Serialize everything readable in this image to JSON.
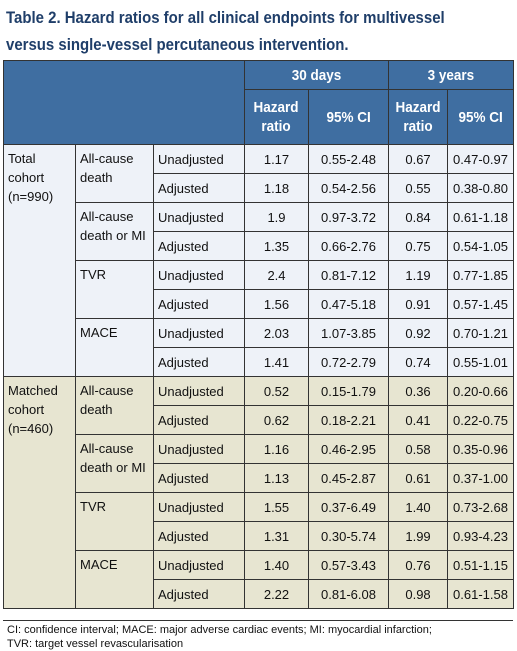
{
  "title_line1": "Table 2. Hazard ratios for all clinical endpoints for multivessel",
  "title_line2": "versus single-vessel percutaneous intervention.",
  "header": {
    "period_30": "30 days",
    "period_3y": "3 years",
    "hazard_line1": "Hazard",
    "hazard_line2": "ratio",
    "ci": "95% CI"
  },
  "groups": [
    {
      "label_lines": [
        "Total",
        "cohort",
        "(n=990)"
      ],
      "endpoints": [
        {
          "label_lines": [
            "All-cause",
            "death"
          ],
          "rows": [
            {
              "adj": "Unadjusted",
              "hr30": "1.17",
              "ci30": "0.55-2.48",
              "hr3": "0.67",
              "ci3": "0.47-0.97"
            },
            {
              "adj": "Adjusted",
              "hr30": "1.18",
              "ci30": "0.54-2.56",
              "hr3": "0.55",
              "ci3": "0.38-0.80"
            }
          ]
        },
        {
          "label_lines": [
            "All-cause",
            "death or MI"
          ],
          "rows": [
            {
              "adj": "Unadjusted",
              "hr30": "1.9",
              "ci30": "0.97-3.72",
              "hr3": "0.84",
              "ci3": "0.61-1.18"
            },
            {
              "adj": "Adjusted",
              "hr30": "1.35",
              "ci30": "0.66-2.76",
              "hr3": "0.75",
              "ci3": "0.54-1.05"
            }
          ]
        },
        {
          "label_lines": [
            "TVR"
          ],
          "rows": [
            {
              "adj": "Unadjusted",
              "hr30": "2.4",
              "ci30": "0.81-7.12",
              "hr3": "1.19",
              "ci3": "0.77-1.85"
            },
            {
              "adj": "Adjusted",
              "hr30": "1.56",
              "ci30": "0.47-5.18",
              "hr3": "0.91",
              "ci3": "0.57-1.45"
            }
          ]
        },
        {
          "label_lines": [
            "MACE"
          ],
          "rows": [
            {
              "adj": "Unadjusted",
              "hr30": "2.03",
              "ci30": "1.07-3.85",
              "hr3": "0.92",
              "ci3": "0.70-1.21"
            },
            {
              "adj": "Adjusted",
              "hr30": "1.41",
              "ci30": "0.72-2.79",
              "hr3": "0.74",
              "ci3": "0.55-1.01"
            }
          ]
        }
      ]
    },
    {
      "label_lines": [
        "Matched",
        "cohort",
        "(n=460)"
      ],
      "endpoints": [
        {
          "label_lines": [
            "All-cause",
            "death"
          ],
          "rows": [
            {
              "adj": "Unadjusted",
              "hr30": "0.52",
              "ci30": "0.15-1.79",
              "hr3": "0.36",
              "ci3": "0.20-0.66"
            },
            {
              "adj": "Adjusted",
              "hr30": "0.62",
              "ci30": "0.18-2.21",
              "hr3": "0.41",
              "ci3": "0.22-0.75"
            }
          ]
        },
        {
          "label_lines": [
            "All-cause",
            "death or MI"
          ],
          "rows": [
            {
              "adj": "Unadjusted",
              "hr30": "1.16",
              "ci30": "0.46-2.95",
              "hr3": "0.58",
              "ci3": "0.35-0.96"
            },
            {
              "adj": "Adjusted",
              "hr30": "1.13",
              "ci30": "0.45-2.87",
              "hr3": "0.61",
              "ci3": "0.37-1.00"
            }
          ]
        },
        {
          "label_lines": [
            "TVR"
          ],
          "rows": [
            {
              "adj": "Unadjusted",
              "hr30": "1.55",
              "ci30": "0.37-6.49",
              "hr3": "1.40",
              "ci3": "0.73-2.68"
            },
            {
              "adj": "Adjusted",
              "hr30": "1.31",
              "ci30": "0.30-5.74",
              "hr3": "1.99",
              "ci3": "0.93-4.23"
            }
          ]
        },
        {
          "label_lines": [
            "MACE"
          ],
          "rows": [
            {
              "adj": "Unadjusted",
              "hr30": "1.40",
              "ci30": "0.57-3.43",
              "hr3": "0.76",
              "ci3": "0.51-1.15"
            },
            {
              "adj": "Adjusted",
              "hr30": "2.22",
              "ci30": "0.81-6.08",
              "hr3": "0.98",
              "ci3": "0.61-1.58"
            }
          ]
        }
      ]
    }
  ],
  "footnote_line1": "CI: confidence interval; MACE: major adverse cardiac events; MI: myocardial infarction;",
  "footnote_line2": "TVR: target vessel revascularisation",
  "colors": {
    "title": "#1f3e69",
    "header_bg": "#3f6ea1",
    "total_bg": "#eef2f8",
    "matched_bg": "#e7e5d1"
  }
}
